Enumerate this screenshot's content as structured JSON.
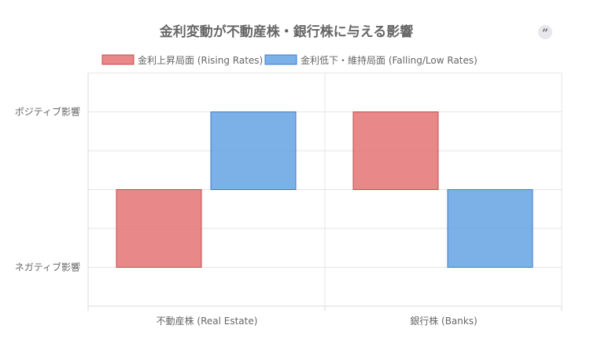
{
  "chart_data": {
    "type": "bar",
    "title": "金利変動が不動産株・銀行株に与える影響",
    "categories": [
      "不動産株 (Real Estate)",
      "銀行株 (Banks)"
    ],
    "series": [
      {
        "name": "金利上昇局面 (Rising Rates)",
        "values": [
          -1,
          1
        ],
        "color": "#e57373"
      },
      {
        "name": "金利低下・維持局面 (Falling/Low Rates)",
        "values": [
          1,
          -1
        ],
        "color": "#64a3e3"
      }
    ],
    "ylim": [
      -1.5,
      1.5
    ],
    "y_ticks": [
      {
        "value": 1,
        "label": "ポジティブ影響"
      },
      {
        "value": -1,
        "label": "ネガティブ影響"
      }
    ],
    "xlabel": "",
    "ylabel": "",
    "legend_position": "top",
    "grid": true
  },
  "ui": {
    "quote_button_icon": "quote-icon",
    "quote_glyph": "”"
  }
}
